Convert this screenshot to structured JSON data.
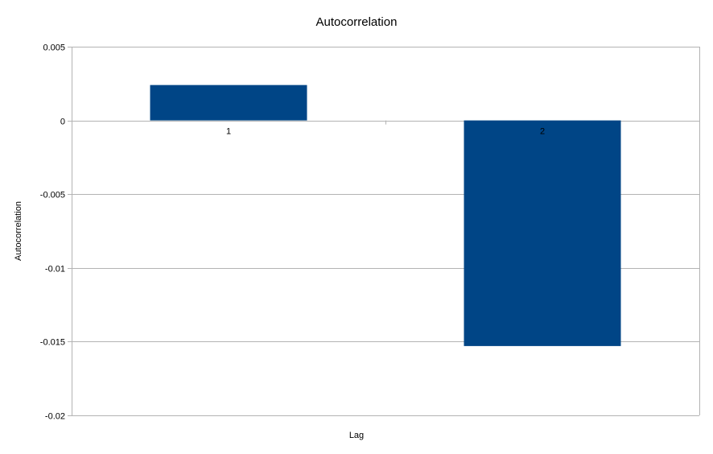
{
  "chart_data": {
    "type": "bar",
    "title": "Autocorrelation",
    "xlabel": "Lag",
    "ylabel": "Autocorrelation",
    "categories": [
      "1",
      "2"
    ],
    "values": [
      0.0024,
      -0.0153
    ],
    "ylim": [
      -0.02,
      0.005
    ],
    "yticks": [
      0.005,
      0,
      -0.005,
      -0.01,
      -0.015,
      -0.02
    ],
    "ytick_labels": [
      "0.005",
      "0",
      "-0.005",
      "-0.01",
      "-0.015",
      "-0.02"
    ],
    "grid": true,
    "legend": "none",
    "bar_color": "#004586",
    "grid_color": "#b3b3b3"
  }
}
